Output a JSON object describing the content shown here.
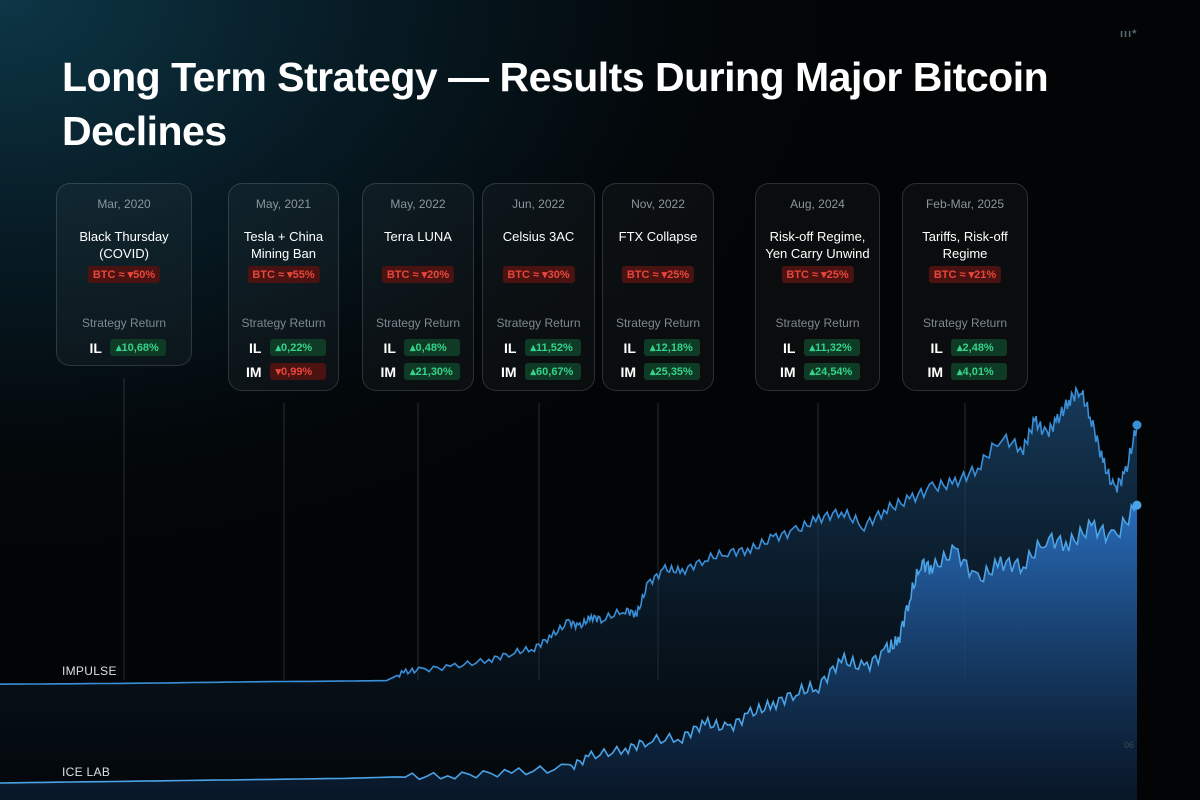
{
  "title": "Long Term Strategy — Results During Major Bitcoin Declines",
  "logo": "ııı*",
  "strategy_return_label": "Strategy Return",
  "events": [
    {
      "date": "Mar, 2020",
      "name": "Black Thursday (COVID)",
      "btc": "BTC ≈ ▾50%",
      "returns": [
        {
          "label": "IL",
          "value": "▴10,68%",
          "sign": "pos"
        }
      ]
    },
    {
      "date": "May, 2021",
      "name": "Tesla + China Mining Ban",
      "btc": "BTC ≈ ▾55%",
      "returns": [
        {
          "label": "IL",
          "value": "▴0,22%",
          "sign": "pos"
        },
        {
          "label": "IM",
          "value": "▾0,99%",
          "sign": "neg"
        }
      ]
    },
    {
      "date": "May, 2022",
      "name": "Terra LUNA",
      "btc": "BTC ≈ ▾20%",
      "returns": [
        {
          "label": "IL",
          "value": "▴0,48%",
          "sign": "pos"
        },
        {
          "label": "IM",
          "value": "▴21,30%",
          "sign": "pos"
        }
      ]
    },
    {
      "date": "Jun, 2022",
      "name": "Celsius 3AC",
      "btc": "BTC ≈ ▾30%",
      "returns": [
        {
          "label": "IL",
          "value": "▴11,52%",
          "sign": "pos"
        },
        {
          "label": "IM",
          "value": "▴60,67%",
          "sign": "pos"
        }
      ]
    },
    {
      "date": "Nov, 2022",
      "name": "FTX Collapse",
      "btc": "BTC ≈ ▾25%",
      "returns": [
        {
          "label": "IL",
          "value": "▴12,18%",
          "sign": "pos"
        },
        {
          "label": "IM",
          "value": "▴25,35%",
          "sign": "pos"
        }
      ]
    },
    {
      "date": "Aug, 2024",
      "name": "Risk-off Regime, Yen Carry Unwind",
      "btc": "BTC ≈ ▾25%",
      "returns": [
        {
          "label": "IL",
          "value": "▴11,32%",
          "sign": "pos"
        },
        {
          "label": "IM",
          "value": "▴24,54%",
          "sign": "pos"
        }
      ]
    },
    {
      "date": "Feb-Mar, 2025",
      "name": "Tariffs, Risk-off Regime",
      "btc": "BTC ≈ ▾21%",
      "returns": [
        {
          "label": "IL",
          "value": "▴2,48%",
          "sign": "pos"
        },
        {
          "label": "IM",
          "value": "▴4,01%",
          "sign": "pos"
        }
      ]
    }
  ],
  "colors": {
    "impulse": "#3a8fd9",
    "icelab": "#4aa3e6",
    "positive": "#34d38a",
    "negative": "#e8463b",
    "background": "#03080b"
  },
  "chart_data": {
    "type": "area",
    "title": "Long Term Strategy — Results During Major Bitcoin Declines",
    "xlabel": "",
    "ylabel": "",
    "grid": false,
    "axis_tick": "06",
    "series": [
      {
        "name": "IMPULSE",
        "x": [
          0,
          0.07,
          0.14,
          0.22,
          0.3,
          0.34,
          0.355,
          0.37,
          0.4,
          0.43,
          0.45,
          0.47,
          0.485,
          0.5,
          0.51,
          0.52,
          0.53,
          0.55,
          0.56,
          0.57,
          0.585,
          0.6,
          0.62,
          0.64,
          0.66,
          0.68,
          0.7,
          0.72,
          0.74,
          0.76,
          0.78,
          0.8,
          0.82,
          0.84,
          0.86,
          0.88,
          0.9,
          0.91,
          0.92,
          0.93,
          0.94,
          0.95,
          0.96,
          0.97,
          0.98,
          0.99,
          1.0
        ],
        "y": [
          0.02,
          0.022,
          0.025,
          0.03,
          0.033,
          0.035,
          0.07,
          0.08,
          0.095,
          0.12,
          0.15,
          0.17,
          0.22,
          0.28,
          0.26,
          0.3,
          0.29,
          0.33,
          0.31,
          0.44,
          0.5,
          0.49,
          0.54,
          0.57,
          0.58,
          0.63,
          0.66,
          0.71,
          0.74,
          0.68,
          0.75,
          0.79,
          0.84,
          0.86,
          0.92,
          1.05,
          1.0,
          1.12,
          1.06,
          1.12,
          1.2,
          1.25,
          1.12,
          0.95,
          0.83,
          0.9,
          1.1
        ],
        "endpoint": 1.1
      },
      {
        "name": "ICE LAB",
        "x": [
          0,
          0.1,
          0.2,
          0.3,
          0.35,
          0.4,
          0.45,
          0.5,
          0.52,
          0.55,
          0.57,
          0.6,
          0.62,
          0.64,
          0.66,
          0.68,
          0.7,
          0.72,
          0.74,
          0.76,
          0.78,
          0.79,
          0.8,
          0.81,
          0.82,
          0.84,
          0.86,
          0.88,
          0.9,
          0.92,
          0.94,
          0.96,
          0.98,
          1.0
        ],
        "y": [
          0.01,
          0.015,
          0.02,
          0.025,
          0.03,
          0.035,
          0.045,
          0.06,
          0.1,
          0.12,
          0.15,
          0.16,
          0.21,
          0.19,
          0.24,
          0.27,
          0.31,
          0.33,
          0.42,
          0.39,
          0.45,
          0.48,
          0.62,
          0.74,
          0.72,
          0.78,
          0.68,
          0.74,
          0.73,
          0.82,
          0.8,
          0.86,
          0.82,
          0.93
        ],
        "endpoint": 0.93
      }
    ]
  }
}
